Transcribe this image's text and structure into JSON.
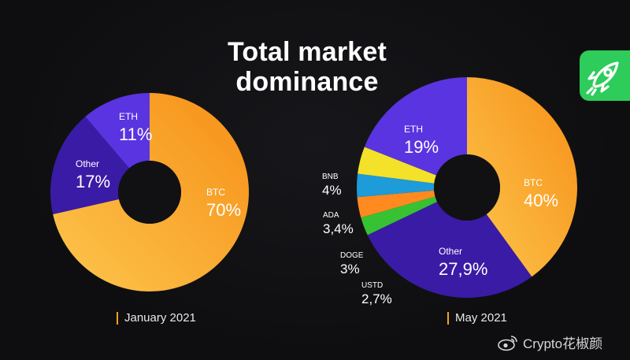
{
  "title": {
    "line1": "Total market",
    "line2": "dominance"
  },
  "colors": {
    "btc": "#f59a1e",
    "btc_light": "#fcbd45",
    "eth": "#5a34e0",
    "other": "#3a1ba6",
    "bnb": "#f3e12a",
    "ada": "#1e9bd9",
    "doge": "#ff8a1f",
    "ustd": "#36c232",
    "badge": "#2ecc5a"
  },
  "chart_data": [
    {
      "type": "pie",
      "period": "January 2021",
      "slices": [
        {
          "name": "BTC",
          "label": "70%",
          "value": 70,
          "color": "btc"
        },
        {
          "name": "Other",
          "label": "17%",
          "value": 17,
          "color": "other"
        },
        {
          "name": "ETH",
          "label": "11%",
          "value": 11,
          "color": "eth"
        }
      ]
    },
    {
      "type": "pie",
      "period": "May 2021",
      "slices": [
        {
          "name": "BTC",
          "label": "40%",
          "value": 40,
          "color": "btc"
        },
        {
          "name": "Other",
          "label": "27,9%",
          "value": 27.9,
          "color": "other"
        },
        {
          "name": "USTD",
          "label": "2,7%",
          "value": 2.7,
          "color": "ustd"
        },
        {
          "name": "DOGE",
          "label": "3%",
          "value": 3,
          "color": "doge"
        },
        {
          "name": "ADA",
          "label": "3,4%",
          "value": 3.4,
          "color": "ada"
        },
        {
          "name": "BNB",
          "label": "4%",
          "value": 4,
          "color": "bnb"
        },
        {
          "name": "ETH",
          "label": "19%",
          "value": 19,
          "color": "eth"
        }
      ]
    }
  ],
  "badge_icon": "rocket-icon",
  "watermark": {
    "icon": "weibo-icon",
    "text": "Crypto花椒颜"
  }
}
